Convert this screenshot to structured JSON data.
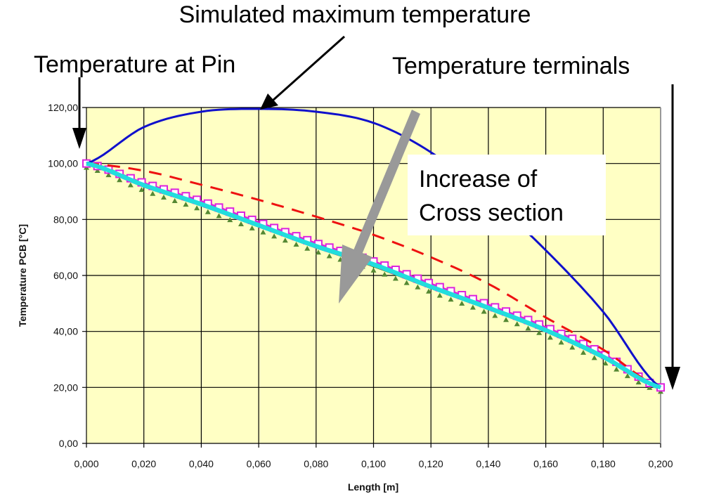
{
  "chart_data": {
    "type": "line",
    "title": "",
    "xlabel": "Length [m]",
    "ylabel": "Temperature PCB [°C]",
    "xlim": [
      0,
      0.2
    ],
    "ylim": [
      0,
      120
    ],
    "grid": true,
    "plot_background": "#FFFFC4",
    "x_ticks": [
      "0,000",
      "0,020",
      "0,040",
      "0,060",
      "0,080",
      "0,100",
      "0,120",
      "0,140",
      "0,160",
      "0,180",
      "0,200"
    ],
    "y_ticks": [
      "0,00",
      "20,00",
      "40,00",
      "60,00",
      "80,00",
      "100,00",
      "120,00"
    ],
    "x": [
      0,
      0.02,
      0.04,
      0.06,
      0.08,
      0.1,
      0.12,
      0.14,
      0.16,
      0.18,
      0.2
    ],
    "series": [
      {
        "color": "#1010CC",
        "style": "solid",
        "marker": "none",
        "values": [
          100,
          113,
          118.5,
          119.5,
          118.5,
          114.5,
          104,
          88,
          69,
          47,
          20
        ]
      },
      {
        "color": "#EE1111",
        "style": "dashed",
        "marker": "none",
        "values": [
          100,
          97.4,
          92.4,
          87,
          81,
          74.5,
          66.5,
          57,
          45,
          33.5,
          20
        ]
      },
      {
        "color": "#DD22DD",
        "style": "solid",
        "marker": "open-square",
        "values": [
          100,
          93,
          86.5,
          79,
          71.5,
          65,
          57,
          49.5,
          41.5,
          32,
          20
        ]
      },
      {
        "color": "#22DDDD",
        "style": "solid",
        "marker": "none",
        "values": [
          100,
          92.3,
          85.5,
          78,
          70.5,
          64,
          56,
          48.5,
          40.5,
          31,
          20
        ]
      },
      {
        "color": "#558833",
        "style": "solid",
        "marker": "triangle",
        "values": [
          100,
          91.8,
          85,
          77.5,
          70,
          63.3,
          55.5,
          48,
          40,
          30.5,
          20
        ]
      }
    ],
    "annotations": [
      {
        "text": "Simulated maximum temperature"
      },
      {
        "text": "Temperature at Pin"
      },
      {
        "text": "Temperature terminals"
      },
      {
        "text_lines": [
          "Increase of",
          "Cross section"
        ]
      }
    ]
  }
}
